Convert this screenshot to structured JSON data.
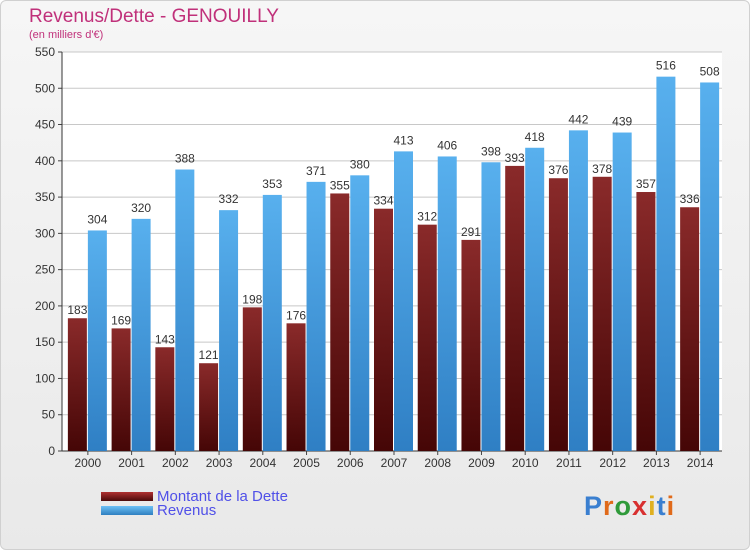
{
  "header": {
    "title": "Revenus/Dette - GENOUILLY",
    "subtitle": "(en milliers d'€)"
  },
  "legend": {
    "dette_label": "Montant de la Dette",
    "revenus_label": "Revenus"
  },
  "logo": {
    "text": "Proxiti",
    "colors": [
      "#3a7fd0",
      "#e06a1a",
      "#2f9a3a",
      "#d83030",
      "#e0b020",
      "#3a7fd0",
      "#e06a1a"
    ]
  },
  "colors": {
    "dette": "#7a1a1a",
    "revenus": "#4aa0e6",
    "accent": "#c0307a"
  },
  "chart_data": {
    "type": "bar",
    "title": "Revenus/Dette - GENOUILLY",
    "ylabel": "(en milliers d'€)",
    "xlabel": "",
    "ylim": [
      0,
      550
    ],
    "yticks": [
      0,
      50,
      100,
      150,
      200,
      250,
      300,
      350,
      400,
      450,
      500,
      550
    ],
    "grid": true,
    "legend_position": "bottom-left",
    "categories": [
      "2000",
      "2001",
      "2002",
      "2003",
      "2004",
      "2005",
      "2006",
      "2007",
      "2008",
      "2009",
      "2010",
      "2011",
      "2012",
      "2013",
      "2014"
    ],
    "series": [
      {
        "name": "Montant de la Dette",
        "values": [
          183,
          169,
          143,
          121,
          198,
          176,
          355,
          334,
          312,
          291,
          393,
          376,
          378,
          357,
          336
        ]
      },
      {
        "name": "Revenus",
        "values": [
          304,
          320,
          388,
          332,
          353,
          371,
          380,
          413,
          406,
          398,
          418,
          442,
          439,
          516,
          508
        ]
      }
    ]
  }
}
